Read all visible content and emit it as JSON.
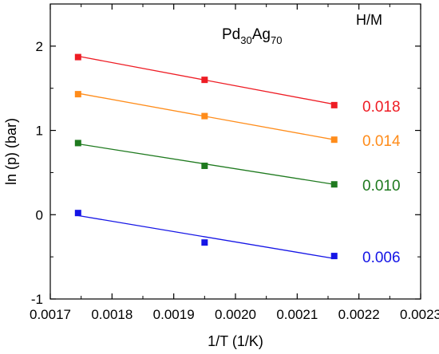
{
  "chart_data": {
    "type": "scatter",
    "title": {
      "base": "Pd",
      "sub1": "30",
      "mid": "Ag",
      "sub2": "70"
    },
    "legend_title": "H/M",
    "xlabel": "1/T (1/K)",
    "ylabel": "ln (p) (bar)",
    "xlim": [
      0.0017,
      0.0023
    ],
    "ylim": [
      -1,
      2.5
    ],
    "xticks": [
      0.0017,
      0.0018,
      0.0019,
      0.002,
      0.0021,
      0.0022,
      0.0023
    ],
    "xtick_labels": [
      "0.0017",
      "0.0018",
      "0.0019",
      "0.0020",
      "0.0021",
      "0.0022",
      "0.0023"
    ],
    "yticks": [
      -1,
      0,
      1,
      2
    ],
    "ytick_labels": [
      "-1",
      "0",
      "1",
      "2"
    ],
    "grid": false,
    "series": [
      {
        "name": "0.018",
        "color": "#ee1c24",
        "x": [
          0.001745,
          0.00195,
          0.00216
        ],
        "y": [
          1.87,
          1.6,
          1.3
        ],
        "fit": [
          [
            0.001745,
            1.88
          ],
          [
            0.00216,
            1.31
          ]
        ]
      },
      {
        "name": "0.014",
        "color": "#ff8c1a",
        "x": [
          0.001745,
          0.00195,
          0.00216
        ],
        "y": [
          1.43,
          1.17,
          0.89
        ],
        "fit": [
          [
            0.001745,
            1.44
          ],
          [
            0.00216,
            0.89
          ]
        ]
      },
      {
        "name": "0.010",
        "color": "#1f7a1f",
        "x": [
          0.001745,
          0.00195,
          0.00216
        ],
        "y": [
          0.85,
          0.58,
          0.36
        ],
        "fit": [
          [
            0.001745,
            0.84
          ],
          [
            0.00216,
            0.36
          ]
        ]
      },
      {
        "name": "0.006",
        "color": "#1515e6",
        "x": [
          0.001745,
          0.00195,
          0.00216
        ],
        "y": [
          0.02,
          -0.33,
          -0.49
        ],
        "fit": [
          [
            0.001745,
            -0.01
          ],
          [
            0.00216,
            -0.52
          ]
        ]
      }
    ]
  }
}
